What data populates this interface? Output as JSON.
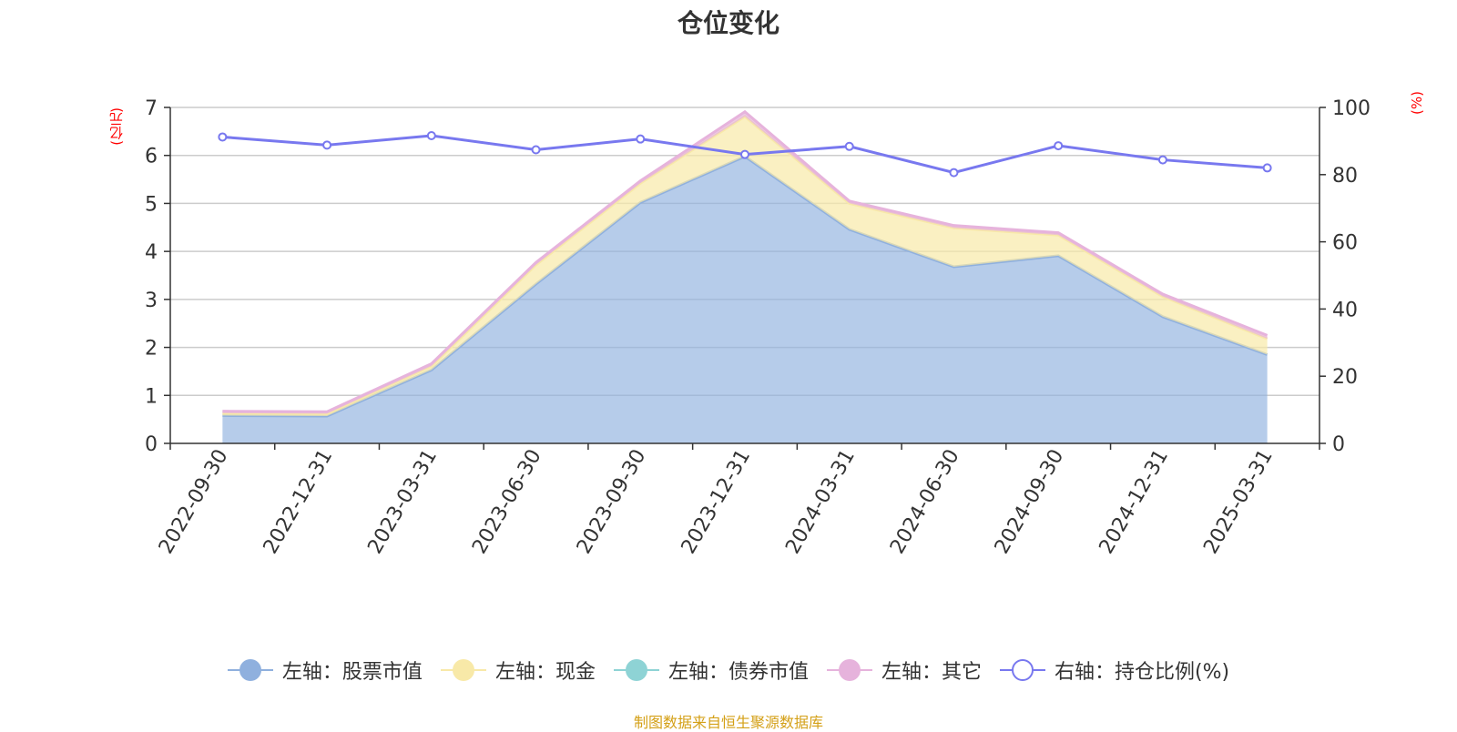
{
  "title": "仓位变化",
  "left_unit": "(亿元)",
  "right_unit": "(%)",
  "footer": "制图数据来自恒生聚源数据库",
  "colors": {
    "stock": "#8fb0de",
    "cash": "#f8e9a8",
    "bond": "#8ed3d5",
    "other": "#e6b3dc",
    "ratio": "#7878ef"
  },
  "legend": [
    {
      "label": "左轴：股票市值",
      "key": "stock"
    },
    {
      "label": "左轴：现金",
      "key": "cash"
    },
    {
      "label": "左轴：债券市值",
      "key": "bond"
    },
    {
      "label": "左轴：其它",
      "key": "other"
    },
    {
      "label": "右轴：持仓比例(%)",
      "key": "ratio"
    }
  ],
  "chart_data": {
    "type": "area",
    "title": "仓位变化",
    "categories": [
      "2022-09-30",
      "2022-12-31",
      "2023-03-31",
      "2023-06-30",
      "2023-09-30",
      "2023-12-31",
      "2024-03-31",
      "2024-06-30",
      "2024-09-30",
      "2024-12-31",
      "2025-03-31"
    ],
    "stacked": true,
    "series": [
      {
        "name": "左轴：股票市值",
        "axis": "left",
        "values": [
          0.58,
          0.57,
          1.53,
          3.32,
          5.02,
          5.98,
          4.46,
          3.68,
          3.91,
          2.64,
          1.85
        ]
      },
      {
        "name": "左轴：现金",
        "axis": "left",
        "values": [
          0.05,
          0.05,
          0.08,
          0.4,
          0.4,
          0.83,
          0.54,
          0.81,
          0.43,
          0.42,
          0.33
        ]
      },
      {
        "name": "左轴：债券市值",
        "axis": "left",
        "values": [
          0,
          0,
          0,
          0,
          0,
          0,
          0,
          0,
          0,
          0,
          0
        ]
      },
      {
        "name": "左轴：其它",
        "axis": "left",
        "values": [
          0.04,
          0.04,
          0.05,
          0.05,
          0.05,
          0.1,
          0.05,
          0.05,
          0.05,
          0.05,
          0.07
        ]
      },
      {
        "name": "右轴：持仓比例(%)",
        "axis": "right",
        "type": "line",
        "values": [
          91.2,
          88.8,
          91.6,
          87.4,
          90.6,
          86.0,
          88.4,
          80.6,
          88.6,
          84.4,
          82.0
        ]
      }
    ],
    "ylim_left": [
      0,
      7
    ],
    "yticks_left": [
      0,
      1,
      2,
      3,
      4,
      5,
      6,
      7
    ],
    "ylim_right": [
      0,
      100
    ],
    "yticks_right": [
      0,
      20,
      40,
      60,
      80,
      100
    ],
    "ylabel_left": "(亿元)",
    "ylabel_right": "(%)",
    "grid": true,
    "legend_position": "bottom"
  }
}
